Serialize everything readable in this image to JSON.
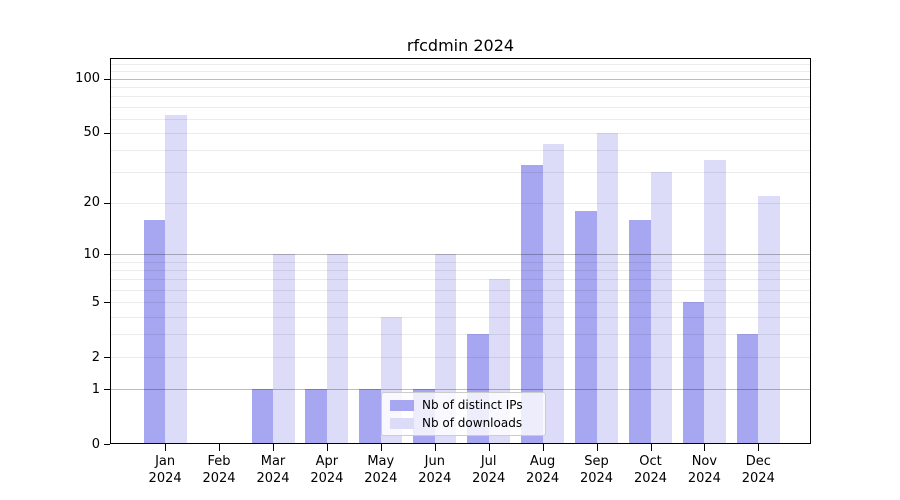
{
  "chart_data": {
    "type": "bar",
    "title": "rfcdmin 2024",
    "categories": [
      "Jan\n2024",
      "Feb\n2024",
      "Mar\n2024",
      "Apr\n2024",
      "May\n2024",
      "Jun\n2024",
      "Jul\n2024",
      "Aug\n2024",
      "Sep\n2024",
      "Oct\n2024",
      "Nov\n2024",
      "Dec\n2024"
    ],
    "series": [
      {
        "name": "Nb of distinct IPs",
        "color": "#a6a6f1",
        "values": [
          16,
          0,
          1,
          1,
          1,
          1,
          3,
          33,
          18,
          16,
          5,
          3
        ]
      },
      {
        "name": "Nb of downloads",
        "color": "#dcdcf8",
        "values": [
          63,
          0,
          10,
          10,
          4,
          10,
          7,
          43,
          50,
          30,
          35,
          22
        ]
      }
    ],
    "xlabel": "",
    "ylabel": "",
    "yscale": "log(x+1)",
    "ylim": [
      0,
      130
    ],
    "yticks": [
      0,
      1,
      2,
      5,
      10,
      20,
      50,
      100
    ],
    "gridlines": {
      "major": [
        1,
        10,
        100
      ],
      "minor": [
        2,
        3,
        4,
        5,
        6,
        7,
        8,
        9,
        20,
        30,
        40,
        50,
        60,
        70,
        80,
        90,
        110,
        120
      ]
    },
    "grid": true,
    "grid_on_top_of_bars": true,
    "legend_position": "lower-center"
  }
}
